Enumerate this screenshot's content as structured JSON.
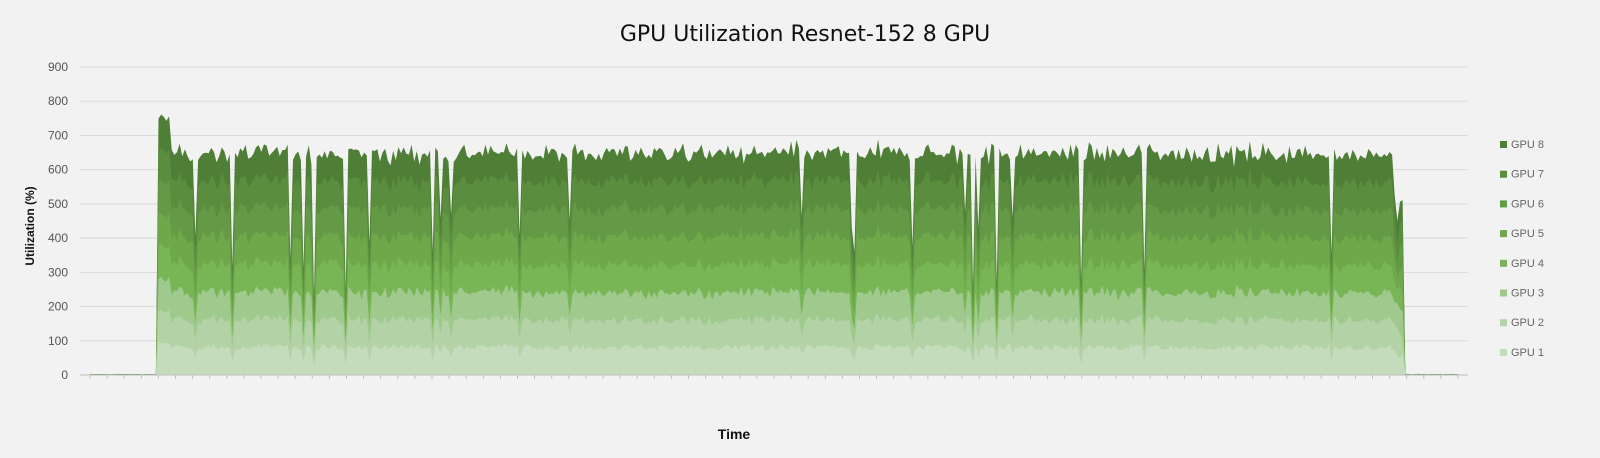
{
  "chart_data": {
    "type": "area",
    "stacked": true,
    "title": "GPU Utilization Resnet-152 8 GPU",
    "xlabel": "Time",
    "ylabel": "Utilization (%)",
    "ylim": [
      0,
      900
    ],
    "yticks": [
      0,
      100,
      200,
      300,
      400,
      500,
      600,
      700,
      800,
      900
    ],
    "grid": true,
    "legend_position": "right",
    "legend_order": [
      "GPU 8",
      "GPU 7",
      "GPU 6",
      "GPU 5",
      "GPU 4",
      "GPU 3",
      "GPU 2",
      "GPU 1"
    ],
    "series": [
      {
        "name": "GPU 1",
        "color": "#c5dcbc",
        "typical": 90
      },
      {
        "name": "GPU 2",
        "color": "#b3d2a6",
        "typical": 90
      },
      {
        "name": "GPU 3",
        "color": "#9fc98d",
        "typical": 90
      },
      {
        "name": "GPU 4",
        "color": "#78b554",
        "typical": 90
      },
      {
        "name": "GPU 5",
        "color": "#6ea84b",
        "typical": 90
      },
      {
        "name": "GPU 6",
        "color": "#649a45",
        "typical": 90
      },
      {
        "name": "GPU 7",
        "color": "#5b8d3f",
        "typical": 90
      },
      {
        "name": "GPU 8",
        "color": "#4f7e37",
        "typical": 90
      }
    ],
    "stacked_total_typical": 720,
    "stacked_total_peak": 790,
    "stacked_total_idle": 5,
    "time_range": [
      0,
      500
    ],
    "active_range": [
      25,
      480
    ]
  }
}
